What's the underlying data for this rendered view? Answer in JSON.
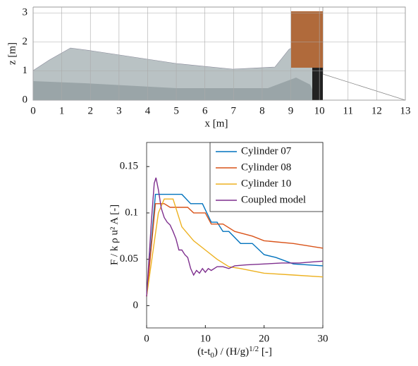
{
  "chart_data": [
    {
      "type": "surface",
      "xlabel": "x [m]",
      "ylabel": "z [m]",
      "xlim": [
        0,
        13
      ],
      "ylim": [
        0,
        3.2
      ],
      "xticks": [
        0,
        1,
        2,
        3,
        4,
        5,
        6,
        7,
        8,
        9,
        10,
        11,
        12,
        13
      ],
      "yticks": [
        0,
        1,
        2,
        3
      ]
    },
    {
      "type": "line",
      "ylabel": "F / k ρ u² A [-]",
      "xlabel_parts": [
        "(t-t",
        "0",
        ") / (H/g)",
        "1/2",
        " [-]"
      ],
      "xlim": [
        0,
        30
      ],
      "ylim": [
        -0.024,
        0.176
      ],
      "xticks": [
        0,
        10,
        20,
        30
      ],
      "yticks": [
        0,
        0.05,
        0.1,
        0.15
      ],
      "series": [
        {
          "name": "Cylinder 07",
          "color": "#0072bd",
          "x": [
            0,
            1.5,
            6,
            7.5,
            9.5,
            11,
            12,
            13,
            14,
            16,
            18,
            20,
            22,
            25,
            30
          ],
          "values": [
            0.01,
            0.12,
            0.12,
            0.11,
            0.11,
            0.09,
            0.09,
            0.08,
            0.08,
            0.067,
            0.067,
            0.055,
            0.052,
            0.045,
            0.043
          ]
        },
        {
          "name": "Cylinder 08",
          "color": "#d95319",
          "x": [
            0,
            1.5,
            3,
            4,
            7,
            8,
            10,
            11,
            13,
            15,
            18,
            20,
            25,
            30
          ],
          "values": [
            0.01,
            0.11,
            0.11,
            0.106,
            0.106,
            0.1,
            0.1,
            0.088,
            0.088,
            0.08,
            0.075,
            0.07,
            0.067,
            0.062
          ]
        },
        {
          "name": "Cylinder 10",
          "color": "#edb120",
          "x": [
            0,
            2,
            3,
            4.5,
            6,
            8,
            10,
            12,
            14,
            16,
            20,
            25,
            30
          ],
          "values": [
            0.01,
            0.1,
            0.115,
            0.115,
            0.085,
            0.07,
            0.06,
            0.05,
            0.042,
            0.04,
            0.035,
            0.033,
            0.031
          ]
        },
        {
          "name": "Coupled model",
          "color": "#7e2f8e",
          "x": [
            0,
            0.8,
            1.3,
            1.6,
            2,
            2.5,
            3,
            3.5,
            4,
            4.5,
            5,
            5.5,
            6,
            6.5,
            7,
            7.5,
            8,
            8.5,
            9,
            9.5,
            10,
            10.5,
            11,
            12,
            13,
            14,
            15,
            17,
            20,
            23,
            26,
            28,
            30
          ],
          "values": [
            0.01,
            0.09,
            0.132,
            0.138,
            0.125,
            0.105,
            0.095,
            0.09,
            0.087,
            0.08,
            0.072,
            0.06,
            0.06,
            0.055,
            0.052,
            0.04,
            0.033,
            0.038,
            0.035,
            0.04,
            0.036,
            0.04,
            0.038,
            0.042,
            0.042,
            0.04,
            0.043,
            0.044,
            0.045,
            0.046,
            0.046,
            0.047,
            0.048
          ]
        }
      ]
    }
  ]
}
